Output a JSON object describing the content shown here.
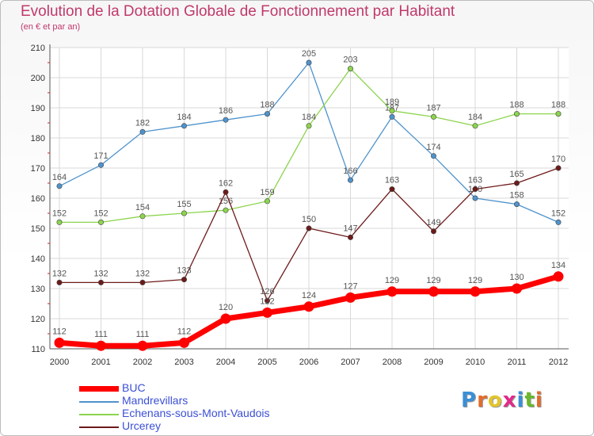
{
  "chart_data": {
    "type": "line",
    "title": "Evolution de la Dotation Globale de Fonctionnement par Habitant",
    "subtitle": "(en € et par an)",
    "xlabel": "",
    "ylabel": "",
    "ylim": [
      110,
      210
    ],
    "yticks": [
      110,
      120,
      130,
      140,
      150,
      160,
      170,
      180,
      190,
      200,
      210
    ],
    "categories": [
      "2000",
      "2001",
      "2002",
      "2003",
      "2004",
      "2005",
      "2006",
      "2007",
      "2008",
      "2009",
      "2010",
      "2011",
      "2012"
    ],
    "grid": true,
    "legend_position": "bottom-left",
    "series": [
      {
        "name": "BUC",
        "color": "#ff0000",
        "values": [
          112,
          111,
          111,
          112,
          120,
          122,
          124,
          127,
          129,
          129,
          129,
          130,
          134
        ]
      },
      {
        "name": "Mandrevillars",
        "color": "#4f93cc",
        "values": [
          164,
          171,
          182,
          184,
          186,
          188,
          205,
          166,
          187,
          174,
          160,
          158,
          152
        ]
      },
      {
        "name": "Echenans-sous-Mont-Vaudois",
        "color": "#8cd44e",
        "values": [
          152,
          152,
          154,
          155,
          156,
          159,
          184,
          203,
          189,
          187,
          184,
          188,
          188
        ]
      },
      {
        "name": "Urcerey",
        "color": "#6d1a1a",
        "values": [
          132,
          132,
          132,
          133,
          162,
          126,
          150,
          147,
          163,
          149,
          163,
          165,
          170
        ]
      }
    ]
  },
  "logo": {
    "letters": [
      "P",
      "r",
      "o",
      "x",
      "i",
      "t",
      "i"
    ],
    "colors": [
      "#3a8fd6",
      "#e36b2b",
      "#e3c52b",
      "#e02b8a",
      "#3a8fd6",
      "#6ab82d",
      "#e36b2b"
    ]
  }
}
